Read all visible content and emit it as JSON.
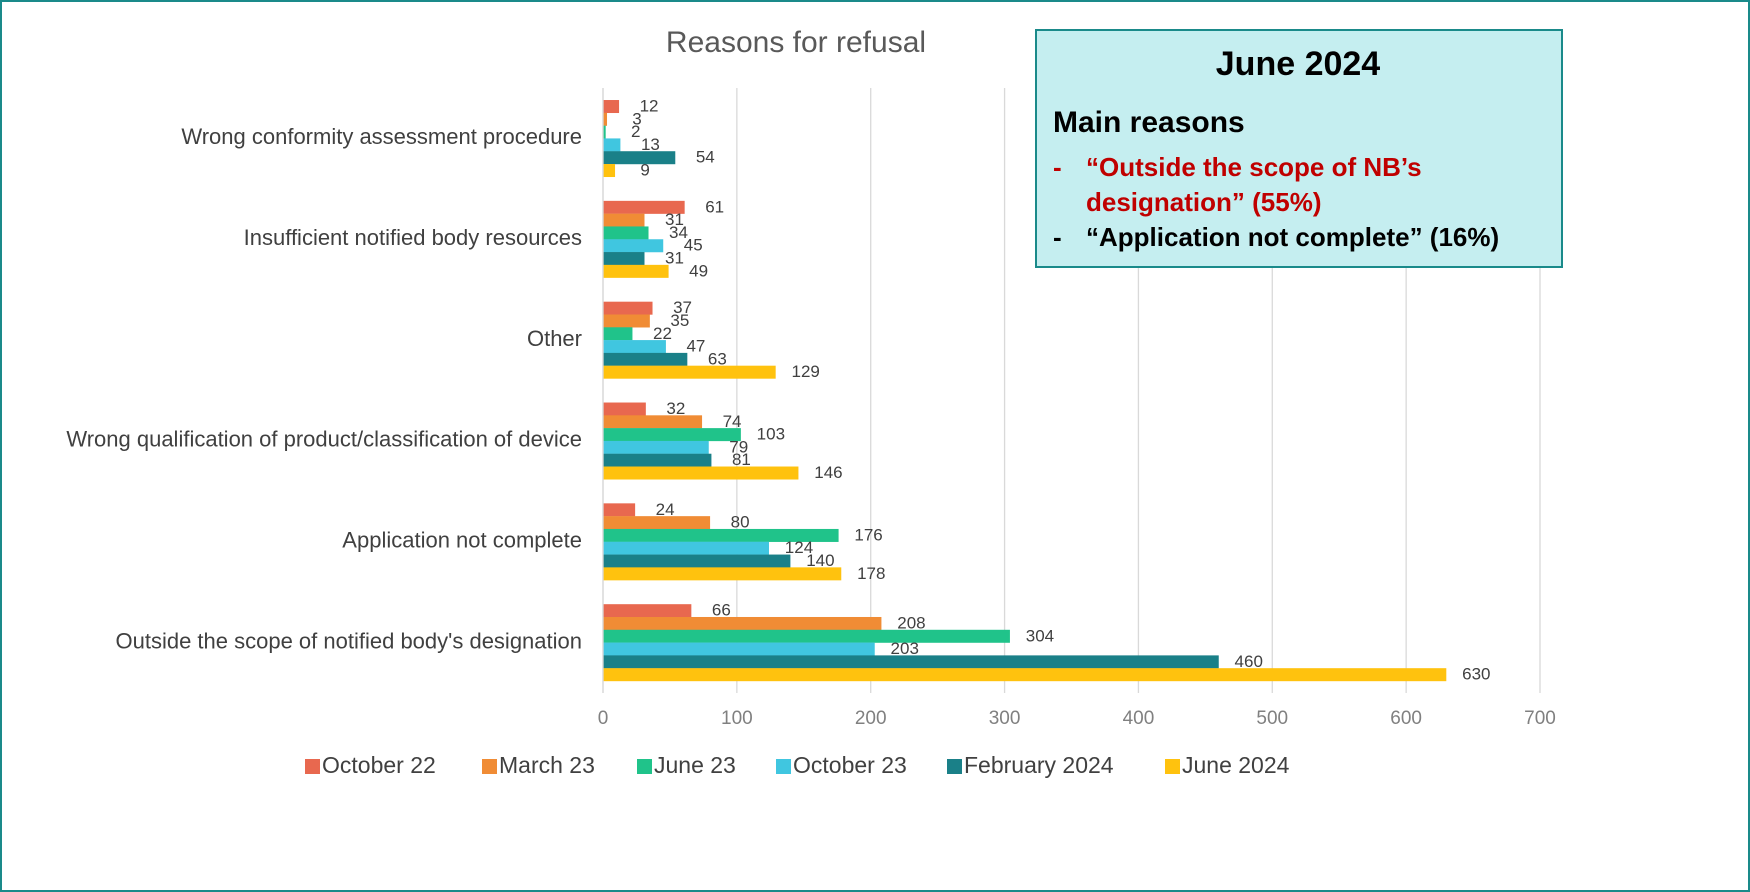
{
  "chart_data": {
    "type": "hbar",
    "title": "Reasons for refusal",
    "categories": [
      "Wrong conformity assessment procedure",
      "Insufficient notified body resources",
      "Other",
      "Wrong qualification of product/classification of device",
      "Application not complete",
      "Outside the scope of notified body's designation"
    ],
    "series": [
      {
        "name": "October 22",
        "color": "#E8684F",
        "values": [
          12,
          61,
          37,
          32,
          24,
          66
        ]
      },
      {
        "name": "March 23",
        "color": "#F08C35",
        "values": [
          3,
          31,
          35,
          74,
          80,
          208
        ]
      },
      {
        "name": "June 23",
        "color": "#20C38A",
        "values": [
          2,
          34,
          22,
          103,
          176,
          304
        ]
      },
      {
        "name": "October 23",
        "color": "#40C6E0",
        "values": [
          13,
          45,
          47,
          79,
          124,
          203
        ]
      },
      {
        "name": "February 2024",
        "color": "#1A8088",
        "values": [
          54,
          31,
          63,
          81,
          140,
          460
        ]
      },
      {
        "name": "June 2024",
        "color": "#FFC20E",
        "values": [
          9,
          49,
          129,
          146,
          178,
          630
        ]
      }
    ],
    "xlim": [
      0,
      700
    ],
    "xticks": [
      0,
      100,
      200,
      300,
      400,
      500,
      600,
      700
    ],
    "grid": true,
    "legend": "bottom",
    "annotation": {
      "title": "June 2024",
      "heading": "Main reasons",
      "items": [
        {
          "bullet": "-",
          "lines": [
            "“Outside the scope of NB’s",
            "designation” (55%)"
          ],
          "color": "#C00000"
        },
        {
          "bullet": "-",
          "lines": [
            "“Application not complete” (16%)"
          ],
          "color": "#000000"
        }
      ]
    }
  }
}
